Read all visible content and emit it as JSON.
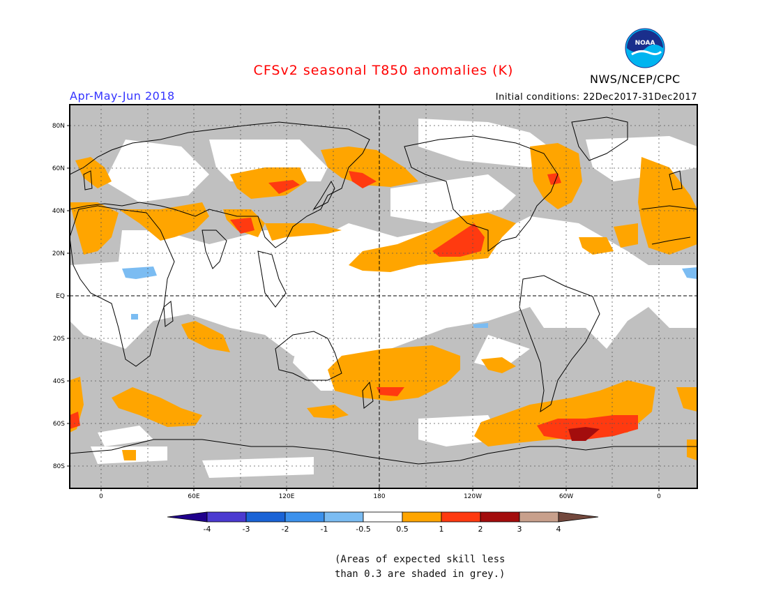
{
  "header": {
    "title": "CFSv2 seasonal T850 anomalies (K)",
    "title_color": "#ff0000",
    "valid_period": "Apr-May-Jun 2018",
    "valid_color": "#3333ff",
    "initial_conditions": "Initial conditions: 22Dec2017-31Dec2017",
    "agency": "NWS/NCEP/CPC",
    "logo_icon": "noaa-logo-icon",
    "logo_text": "NOAA"
  },
  "map": {
    "projection": "cylindrical equidistant",
    "lon_range": "20W to 20E (wrapping 360)",
    "lat_range": "90S to 90N",
    "lat_labels": [
      "80N",
      "60N",
      "40N",
      "20N",
      "EQ",
      "20S",
      "40S",
      "60S",
      "80S"
    ],
    "lon_labels": [
      "0",
      "60E",
      "120E",
      "180",
      "120W",
      "60W",
      "0"
    ],
    "grey_color": "#c0c0c0",
    "grey_meaning": "skill less than 0.3"
  },
  "colorbar": {
    "labels": [
      "-4",
      "-3",
      "-2",
      "-1",
      "-0.5",
      "0.5",
      "1",
      "2",
      "3",
      "4"
    ],
    "colors": [
      "#20008c",
      "#4b3ad0",
      "#1a63d6",
      "#3c91ec",
      "#7bbcf2",
      "#ffffff",
      "#ffa500",
      "#ff3a10",
      "#a30d0d",
      "#c8a08c",
      "#73483d"
    ]
  },
  "footnote": {
    "line1": "(Areas of expected skill less",
    "line2": "than 0.3 are shaded in grey.)"
  }
}
